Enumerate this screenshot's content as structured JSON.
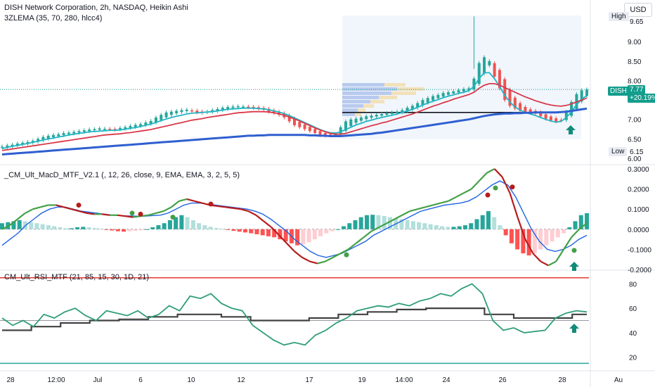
{
  "header": {
    "title": "DISH Network Corporation, 2h, NASDAQ, Heikin Ashi",
    "currency": "USD"
  },
  "indicators": {
    "ema": "3ZLEMA (35, 70, 280, hlcc4)",
    "macd": "_CM_Ult_MacD_MTF_V2.1 (, 12, 26, close, 9, EMA, EMA, 3, 2, 5, 5)",
    "rsi": "CM_Ult_RSI_MTF (21, 85, 15, 30, 1D, 21)"
  },
  "price_panel": {
    "high_label": "High",
    "high_value": "9.65",
    "low_label": "Low",
    "low_value": "6.15",
    "symbol": "DISH",
    "last_price": "7.77",
    "change": "+20.19%",
    "ticks": [
      "9.00",
      "8.50",
      "8.00",
      "7.50",
      "7.00",
      "6.50",
      "6.00"
    ]
  },
  "macd_panel": {
    "ticks": [
      "0.3000",
      "0.2000",
      "0.1000",
      "0.0000",
      "-0.1000",
      "-0.2000"
    ]
  },
  "rsi_panel": {
    "ticks": [
      "80",
      "60",
      "40",
      "20"
    ]
  },
  "x_axis": {
    "ticks": [
      "28",
      "12:00",
      "Jul",
      "6",
      "10",
      "12",
      "17",
      "19",
      "14:00",
      "24",
      "26",
      "28",
      "Au"
    ]
  },
  "colors": {
    "up": "#26a69a",
    "down": "#ef5350",
    "ema_fast": "#22b5c4",
    "ema_mid": "#d9394b",
    "ema_slow": "#2f5fd0",
    "macd_green": "#43a047",
    "macd_red": "#b71c1c",
    "signal": "#1e63e0",
    "rsi_line": "#2e9e77",
    "rsi_tf": "#424242",
    "arrow": "#138b78"
  },
  "chart_data": [
    {
      "type": "candlestick",
      "title": "DISH Network Corporation, 2h, NASDAQ, Heikin Ashi",
      "ylim": [
        6.0,
        9.8
      ],
      "x_ticks": [
        "28",
        "12:00",
        "Jul",
        "6",
        "10",
        "12",
        "17",
        "19",
        "14:00",
        "24",
        "26",
        "28",
        "Au"
      ],
      "close": [
        6.3,
        6.33,
        6.35,
        6.38,
        6.4,
        6.42,
        6.45,
        6.5,
        6.55,
        6.58,
        6.6,
        6.62,
        6.65,
        6.66,
        6.68,
        6.7,
        6.72,
        6.74,
        6.75,
        6.77,
        6.76,
        6.75,
        6.74,
        6.78,
        6.8,
        6.83,
        6.86,
        6.88,
        6.92,
        6.96,
        7.05,
        7.12,
        7.18,
        7.2,
        7.22,
        7.24,
        7.25,
        7.22,
        7.18,
        7.17,
        7.2,
        7.24,
        7.27,
        7.3,
        7.32,
        7.33,
        7.34,
        7.33,
        7.32,
        7.3,
        7.28,
        7.25,
        7.2,
        7.16,
        7.12,
        7.05,
        6.95,
        6.85,
        6.8,
        6.75,
        6.7,
        6.65,
        6.6,
        6.58,
        6.6,
        6.62,
        6.8,
        6.95,
        7.0,
        7.02,
        7.05,
        7.08,
        7.1,
        7.12,
        7.14,
        7.16,
        7.18,
        7.2,
        7.24,
        7.3,
        7.35,
        7.42,
        7.5,
        7.55,
        7.6,
        7.63,
        7.68,
        7.7,
        7.72,
        7.75,
        7.78,
        7.8,
        8.05,
        8.45,
        8.6,
        8.5,
        8.1,
        7.8,
        7.5,
        7.35,
        7.28,
        7.22,
        7.2,
        7.18,
        7.15,
        7.08,
        7.02,
        6.98,
        6.95,
        6.98,
        7.2,
        7.45,
        7.65,
        7.75,
        7.77
      ],
      "series": [
        {
          "name": "EMA 35",
          "values": [
            6.25,
            6.28,
            6.31,
            6.33,
            6.36,
            6.38,
            6.41,
            6.44,
            6.47,
            6.5,
            6.52,
            6.55,
            6.57,
            6.6,
            6.62,
            6.64,
            6.66,
            6.68,
            6.69,
            6.7,
            6.71,
            6.72,
            6.72,
            6.73,
            6.75,
            6.77,
            6.79,
            6.82,
            6.85,
            6.88,
            6.92,
            6.97,
            7.01,
            7.05,
            7.08,
            7.11,
            7.14,
            7.16,
            7.17,
            7.18,
            7.19,
            7.2,
            7.22,
            7.24,
            7.26,
            7.27,
            7.28,
            7.29,
            7.29,
            7.29,
            7.28,
            7.27,
            7.25,
            7.22,
            7.19,
            7.15,
            7.1,
            7.04,
            6.98,
            6.92,
            6.86,
            6.8,
            6.74,
            6.69,
            6.66,
            6.65,
            6.68,
            6.74,
            6.8,
            6.86,
            6.9,
            6.95,
            6.98,
            7.02,
            7.05,
            7.08,
            7.11,
            7.14,
            7.18,
            7.22,
            7.26,
            7.31,
            7.37,
            7.42,
            7.47,
            7.51,
            7.56,
            7.6,
            7.63,
            7.67,
            7.7,
            7.74,
            7.85,
            8.05,
            8.2,
            8.2,
            8.05,
            7.85,
            7.62,
            7.45,
            7.32,
            7.24,
            7.18,
            7.14,
            7.1,
            7.05,
            7.0,
            6.96,
            6.93,
            6.95,
            7.05,
            7.2,
            7.38,
            7.52,
            7.62
          ]
        },
        {
          "name": "EMA 70",
          "values": [
            6.2,
            6.22,
            6.24,
            6.26,
            6.28,
            6.3,
            6.32,
            6.34,
            6.36,
            6.38,
            6.4,
            6.42,
            6.44,
            6.46,
            6.48,
            6.5,
            6.52,
            6.54,
            6.56,
            6.58,
            6.6,
            6.61,
            6.62,
            6.63,
            6.65,
            6.66,
            6.68,
            6.7,
            6.72,
            6.74,
            6.77,
            6.8,
            6.83,
            6.86,
            6.89,
            6.92,
            6.95,
            6.98,
            7.0,
            7.02,
            7.05,
            7.07,
            7.09,
            7.11,
            7.13,
            7.15,
            7.17,
            7.18,
            7.19,
            7.2,
            7.2,
            7.2,
            7.19,
            7.17,
            7.14,
            7.11,
            7.06,
            7.01,
            6.96,
            6.9,
            6.84,
            6.78,
            6.73,
            6.68,
            6.64,
            6.62,
            6.62,
            6.64,
            6.68,
            6.72,
            6.76,
            6.8,
            6.84,
            6.87,
            6.91,
            6.94,
            6.98,
            7.02,
            7.06,
            7.1,
            7.14,
            7.19,
            7.24,
            7.29,
            7.34,
            7.38,
            7.43,
            7.47,
            7.52,
            7.56,
            7.6,
            7.64,
            7.7,
            7.8,
            7.88,
            7.92,
            7.92,
            7.88,
            7.82,
            7.76,
            7.7,
            7.64,
            7.58,
            7.53,
            7.48,
            7.44,
            7.4,
            7.37,
            7.35,
            7.34,
            7.36,
            7.4,
            7.45,
            7.5,
            7.55
          ]
        },
        {
          "name": "EMA 280",
          "values": [
            6.1,
            6.11,
            6.12,
            6.13,
            6.14,
            6.15,
            6.16,
            6.17,
            6.18,
            6.19,
            6.2,
            6.21,
            6.22,
            6.23,
            6.24,
            6.25,
            6.26,
            6.27,
            6.28,
            6.29,
            6.3,
            6.31,
            6.32,
            6.33,
            6.34,
            6.35,
            6.36,
            6.37,
            6.38,
            6.39,
            6.4,
            6.41,
            6.42,
            6.43,
            6.44,
            6.45,
            6.46,
            6.47,
            6.48,
            6.49,
            6.5,
            6.51,
            6.52,
            6.53,
            6.54,
            6.55,
            6.56,
            6.57,
            6.58,
            6.58,
            6.59,
            6.59,
            6.6,
            6.6,
            6.6,
            6.6,
            6.6,
            6.6,
            6.6,
            6.6,
            6.59,
            6.59,
            6.58,
            6.58,
            6.57,
            6.57,
            6.57,
            6.58,
            6.59,
            6.6,
            6.61,
            6.62,
            6.63,
            6.65,
            6.66,
            6.68,
            6.7,
            6.72,
            6.74,
            6.76,
            6.78,
            6.8,
            6.82,
            6.84,
            6.86,
            6.88,
            6.9,
            6.92,
            6.94,
            6.96,
            6.98,
            7.0,
            7.03,
            7.06,
            7.09,
            7.11,
            7.13,
            7.14,
            7.15,
            7.15,
            7.16,
            7.16,
            7.17,
            7.17,
            7.18,
            7.18,
            7.18,
            7.18,
            7.18,
            7.19,
            7.2,
            7.22,
            7.24,
            7.26,
            7.28
          ]
        }
      ]
    },
    {
      "type": "bar",
      "title": "_CM_Ult_MacD_MTF_V2.1 (, 12, 26, close, 9, EMA, EMA, 3, 2, 5, 5)",
      "ylim": [
        -0.2,
        0.3
      ],
      "series": [
        {
          "name": "histogram",
          "values": [
            0.03,
            0.035,
            0.04,
            0.045,
            0.04,
            0.035,
            0.03,
            0.025,
            0.02,
            0.015,
            0.01,
            0.005,
            0.005,
            0.01,
            0.012,
            0.01,
            0.006,
            0.003,
            -0.002,
            -0.006,
            -0.01,
            -0.012,
            -0.01,
            -0.008,
            -0.005,
            0.0,
            0.01,
            0.02,
            0.03,
            0.045,
            0.06,
            0.07,
            0.06,
            0.045,
            0.03,
            0.02,
            0.012,
            0.006,
            0.002,
            -0.003,
            -0.008,
            -0.012,
            -0.016,
            -0.02,
            -0.025,
            -0.03,
            -0.035,
            -0.04,
            -0.05,
            -0.06,
            -0.07,
            -0.08,
            -0.075,
            -0.065,
            -0.05,
            -0.035,
            -0.02,
            -0.01,
            0.0,
            0.015,
            0.03,
            0.045,
            0.06,
            0.07,
            0.072,
            0.07,
            0.066,
            0.06,
            0.055,
            0.05,
            0.045,
            0.04,
            0.035,
            0.03,
            0.025,
            0.02,
            0.015,
            0.012,
            0.012,
            0.015,
            0.02,
            0.03,
            0.05,
            0.07,
            0.09,
            0.06,
            0.02,
            -0.03,
            -0.07,
            -0.1,
            -0.12,
            -0.13,
            -0.12,
            -0.1,
            -0.08,
            -0.06,
            -0.04,
            -0.02,
            0.01,
            0.04,
            0.07,
            0.08
          ]
        },
        {
          "name": "macd",
          "values": [
            0.0,
            0.02,
            0.05,
            0.08,
            0.1,
            0.11,
            0.12,
            0.12,
            0.11,
            0.1,
            0.09,
            0.08,
            0.075,
            0.075,
            0.07,
            0.07,
            0.065,
            0.06,
            0.065,
            0.07,
            0.08,
            0.09,
            0.11,
            0.14,
            0.15,
            0.14,
            0.13,
            0.12,
            0.115,
            0.11,
            0.105,
            0.1,
            0.09,
            0.07,
            0.04,
            0.01,
            -0.03,
            -0.07,
            -0.11,
            -0.14,
            -0.16,
            -0.17,
            -0.16,
            -0.14,
            -0.12,
            -0.1,
            -0.07,
            -0.04,
            -0.01,
            0.01,
            0.03,
            0.05,
            0.07,
            0.09,
            0.1,
            0.11,
            0.12,
            0.13,
            0.14,
            0.16,
            0.18,
            0.2,
            0.24,
            0.28,
            0.3,
            0.26,
            0.18,
            0.06,
            -0.05,
            -0.12,
            -0.16,
            -0.18,
            -0.16,
            -0.1,
            -0.04,
            0.0,
            0.03
          ]
        },
        {
          "name": "signal",
          "values": [
            -0.08,
            -0.05,
            -0.02,
            0.02,
            0.05,
            0.08,
            0.1,
            0.11,
            0.11,
            0.1,
            0.09,
            0.085,
            0.08,
            0.075,
            0.07,
            0.068,
            0.066,
            0.065,
            0.065,
            0.068,
            0.07,
            0.08,
            0.1,
            0.12,
            0.13,
            0.13,
            0.125,
            0.12,
            0.115,
            0.11,
            0.105,
            0.1,
            0.09,
            0.075,
            0.05,
            0.02,
            -0.01,
            -0.05,
            -0.08,
            -0.11,
            -0.13,
            -0.14,
            -0.13,
            -0.12,
            -0.1,
            -0.08,
            -0.06,
            -0.03,
            -0.01,
            0.01,
            0.03,
            0.05,
            0.07,
            0.09,
            0.1,
            0.11,
            0.12,
            0.125,
            0.13,
            0.14,
            0.16,
            0.19,
            0.22,
            0.24,
            0.22,
            0.16,
            0.08,
            0.0,
            -0.06,
            -0.1,
            -0.11,
            -0.1,
            -0.08,
            -0.05,
            -0.03
          ]
        }
      ]
    },
    {
      "type": "line",
      "title": "CM_Ult_RSI_MTF (21, 85, 15, 30, 1D, 21)",
      "ylim": [
        10,
        90
      ],
      "series": [
        {
          "name": "rsi",
          "values": [
            52,
            46,
            50,
            45,
            55,
            52,
            57,
            60,
            54,
            50,
            58,
            56,
            54,
            58,
            52,
            55,
            62,
            58,
            70,
            68,
            72,
            64,
            60,
            58,
            46,
            40,
            34,
            30,
            32,
            30,
            38,
            42,
            48,
            52,
            58,
            60,
            62,
            61,
            64,
            62,
            66,
            68,
            72,
            70,
            76,
            80,
            72,
            50,
            42,
            44,
            40,
            41,
            42,
            52,
            56,
            58,
            57
          ]
        },
        {
          "name": "rsi_tf",
          "values": [
            42,
            42,
            45,
            45,
            48,
            48,
            50,
            50,
            51,
            51,
            53,
            53,
            55,
            55,
            55,
            53,
            53,
            50,
            50,
            50,
            50,
            52,
            52,
            55,
            55,
            57,
            57,
            59,
            59,
            60,
            60,
            60,
            60,
            55,
            55,
            52,
            52,
            52,
            52,
            55,
            55
          ]
        }
      ],
      "levels": [
        85,
        50,
        15
      ]
    }
  ]
}
